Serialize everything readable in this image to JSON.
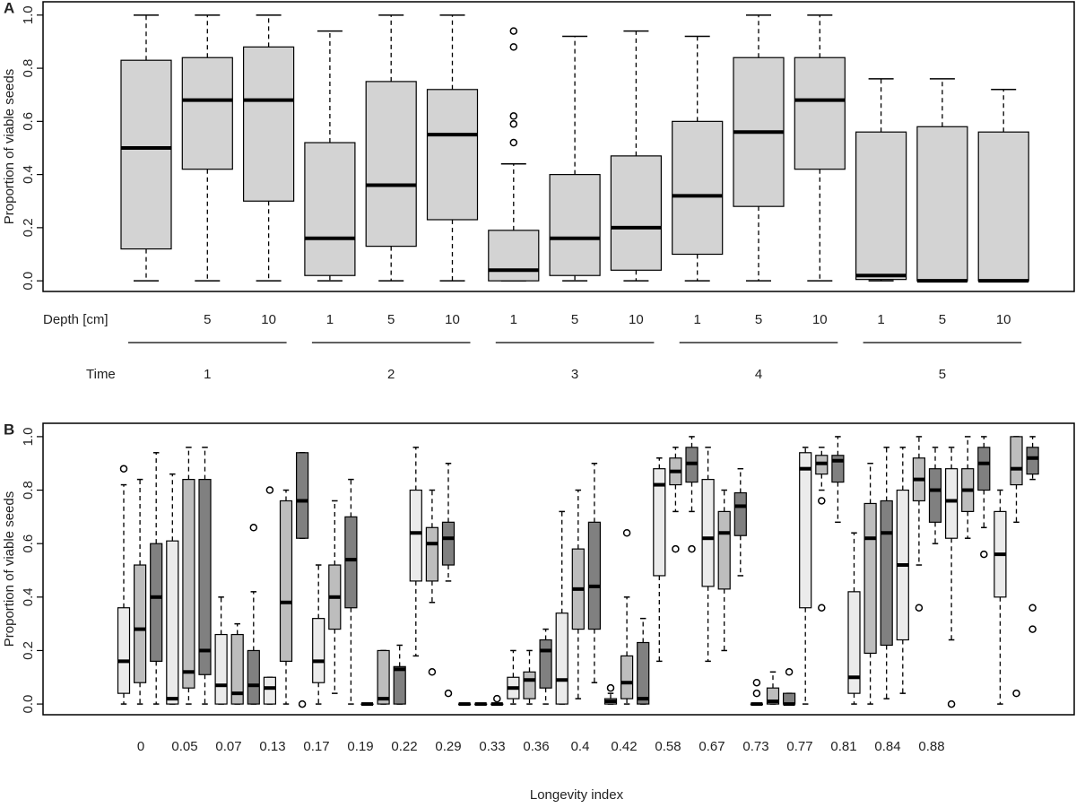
{
  "chart_data": [
    {
      "type": "box",
      "panel_label": "A",
      "ylabel": "Proportion of viable seeds",
      "ylim": [
        -0.04,
        1.05
      ],
      "yticks": [
        {
          "value": 0,
          "label": "0.0"
        },
        {
          "value": 0.2,
          "label": "0.2"
        },
        {
          "value": 0.4,
          "label": "0.4"
        },
        {
          "value": 0.6,
          "label": "0.6"
        },
        {
          "value": 0.8,
          "label": "0.8"
        },
        {
          "value": 1,
          "label": "1.0"
        }
      ],
      "depth_title": "Depth [cm]",
      "depths": [
        null,
        5,
        10,
        1,
        5,
        10,
        1,
        5,
        10,
        1,
        5,
        10,
        1,
        5,
        10
      ],
      "time_title": "Time",
      "times": [
        1,
        2,
        3,
        4,
        5
      ],
      "color": "#d3d3d3",
      "boxes": [
        {
          "low": 0,
          "q1": 0.12,
          "median": 0.5,
          "q3": 0.83,
          "high": 1,
          "outliers": []
        },
        {
          "low": 0,
          "q1": 0.42,
          "median": 0.68,
          "q3": 0.84,
          "high": 1,
          "outliers": []
        },
        {
          "low": 0,
          "q1": 0.3,
          "median": 0.68,
          "q3": 0.88,
          "high": 1,
          "outliers": []
        },
        {
          "low": 0,
          "q1": 0.02,
          "median": 0.16,
          "q3": 0.52,
          "high": 0.94,
          "outliers": []
        },
        {
          "low": 0,
          "q1": 0.13,
          "median": 0.36,
          "q3": 0.75,
          "high": 1,
          "outliers": []
        },
        {
          "low": 0,
          "q1": 0.23,
          "median": 0.55,
          "q3": 0.72,
          "high": 1,
          "outliers": []
        },
        {
          "low": 0,
          "q1": 0,
          "median": 0.04,
          "q3": 0.19,
          "high": 0.44,
          "outliers": [
            0.52,
            0.59,
            0.62,
            0.88,
            0.94
          ]
        },
        {
          "low": 0,
          "q1": 0.02,
          "median": 0.16,
          "q3": 0.4,
          "high": 0.92,
          "outliers": []
        },
        {
          "low": 0,
          "q1": 0.04,
          "median": 0.2,
          "q3": 0.47,
          "high": 0.94,
          "outliers": []
        },
        {
          "low": 0,
          "q1": 0.1,
          "median": 0.32,
          "q3": 0.6,
          "high": 0.92,
          "outliers": []
        },
        {
          "low": 0,
          "q1": 0.28,
          "median": 0.56,
          "q3": 0.84,
          "high": 1,
          "outliers": []
        },
        {
          "low": 0,
          "q1": 0.42,
          "median": 0.68,
          "q3": 0.84,
          "high": 1,
          "outliers": []
        },
        {
          "low": 0,
          "q1": 0.005,
          "median": 0.02,
          "q3": 0.56,
          "high": 0.76,
          "outliers": []
        },
        {
          "low": 0,
          "q1": 0,
          "median": 0,
          "q3": 0.58,
          "high": 0.76,
          "outliers": []
        },
        {
          "low": 0,
          "q1": 0,
          "median": 0,
          "q3": 0.56,
          "high": 0.72,
          "outliers": []
        }
      ]
    },
    {
      "type": "grouped-box",
      "panel_label": "B",
      "ylabel": "Proportion of viable seeds",
      "xlabel": "Longevity index",
      "ylim": [
        -0.04,
        1.05
      ],
      "yticks": [
        {
          "value": 0,
          "label": "0.0"
        },
        {
          "value": 0.2,
          "label": "0.2"
        },
        {
          "value": 0.4,
          "label": "0.4"
        },
        {
          "value": 0.6,
          "label": "0.6"
        },
        {
          "value": 0.8,
          "label": "0.8"
        },
        {
          "value": 1,
          "label": "1.0"
        }
      ],
      "categories": [
        0,
        0.05,
        0.07,
        0.13,
        0.17,
        0.19,
        0.22,
        0.29,
        0.33,
        0.36,
        0.4,
        0.42,
        0.58,
        0.67,
        0.73,
        0.77,
        0.81,
        0.84,
        0.88
      ],
      "series": [
        {
          "color": "#ebebeb",
          "boxes": [
            {
              "low": 0,
              "q1": 0.04,
              "median": 0.16,
              "q3": 0.36,
              "high": 0.82,
              "outliers": [
                0.88
              ]
            },
            {
              "low": 0,
              "q1": 0,
              "median": 0.02,
              "q3": 0.61,
              "high": 0.86,
              "outliers": []
            },
            {
              "low": 0,
              "q1": 0,
              "median": 0.07,
              "q3": 0.26,
              "high": 0.4,
              "outliers": []
            },
            {
              "low": 0,
              "q1": 0,
              "median": 0.06,
              "q3": 0.1,
              "high": 0.1,
              "outliers": [
                0.8
              ]
            },
            {
              "low": 0,
              "q1": 0.08,
              "median": 0.16,
              "q3": 0.32,
              "high": 0.52,
              "outliers": []
            },
            {
              "low": 0,
              "q1": 0,
              "median": 0,
              "q3": 0,
              "high": 0,
              "outliers": []
            },
            {
              "low": 0.18,
              "q1": 0.46,
              "median": 0.64,
              "q3": 0.8,
              "high": 0.96,
              "outliers": []
            },
            {
              "low": 0,
              "q1": 0,
              "median": 0,
              "q3": 0,
              "high": 0,
              "outliers": []
            },
            {
              "low": 0,
              "q1": 0.02,
              "median": 0.06,
              "q3": 0.1,
              "high": 0.2,
              "outliers": []
            },
            {
              "low": 0,
              "q1": 0,
              "median": 0.09,
              "q3": 0.34,
              "high": 0.72,
              "outliers": []
            },
            {
              "low": 0,
              "q1": 0,
              "median": 0.01,
              "q3": 0.02,
              "high": 0.04,
              "outliers": [
                0.06
              ]
            },
            {
              "low": 0.16,
              "q1": 0.48,
              "median": 0.82,
              "q3": 0.88,
              "high": 0.92,
              "outliers": []
            },
            {
              "low": 0.16,
              "q1": 0.44,
              "median": 0.62,
              "q3": 0.84,
              "high": 0.96,
              "outliers": []
            },
            {
              "low": 0,
              "q1": 0,
              "median": 0,
              "q3": 0,
              "high": 0,
              "outliers": [
                0.04,
                0.08
              ]
            },
            {
              "low": 0,
              "q1": 0.36,
              "median": 0.88,
              "q3": 0.94,
              "high": 0.96,
              "outliers": []
            },
            {
              "low": 0,
              "q1": 0.04,
              "median": 0.1,
              "q3": 0.42,
              "high": 0.64,
              "outliers": []
            },
            {
              "low": 0.04,
              "q1": 0.24,
              "median": 0.52,
              "q3": 0.8,
              "high": 0.96,
              "outliers": []
            },
            {
              "low": 0.24,
              "q1": 0.62,
              "median": 0.76,
              "q3": 0.88,
              "high": 0.96,
              "outliers": [
                0
              ]
            },
            {
              "low": 0,
              "q1": 0.4,
              "median": 0.56,
              "q3": 0.72,
              "high": 0.8,
              "outliers": []
            }
          ]
        },
        {
          "color": "#bdbdbd",
          "boxes": [
            {
              "low": 0,
              "q1": 0.08,
              "median": 0.28,
              "q3": 0.52,
              "high": 0.84,
              "outliers": []
            },
            {
              "low": 0,
              "q1": 0.06,
              "median": 0.12,
              "q3": 0.84,
              "high": 0.96,
              "outliers": []
            },
            {
              "low": 0,
              "q1": 0,
              "median": 0.04,
              "q3": 0.26,
              "high": 0.3,
              "outliers": []
            },
            {
              "low": 0,
              "q1": 0.16,
              "median": 0.38,
              "q3": 0.76,
              "high": 0.8,
              "outliers": []
            },
            {
              "low": 0.04,
              "q1": 0.28,
              "median": 0.4,
              "q3": 0.52,
              "high": 0.76,
              "outliers": []
            },
            {
              "low": 0,
              "q1": 0,
              "median": 0.02,
              "q3": 0.2,
              "high": 0.2,
              "outliers": []
            },
            {
              "low": 0.38,
              "q1": 0.46,
              "median": 0.6,
              "q3": 0.66,
              "high": 0.8,
              "outliers": [
                0.12
              ]
            },
            {
              "low": 0,
              "q1": 0,
              "median": 0,
              "q3": 0,
              "high": 0,
              "outliers": []
            },
            {
              "low": 0,
              "q1": 0.02,
              "median": 0.09,
              "q3": 0.12,
              "high": 0.2,
              "outliers": []
            },
            {
              "low": 0.02,
              "q1": 0.28,
              "median": 0.43,
              "q3": 0.58,
              "high": 0.8,
              "outliers": []
            },
            {
              "low": 0,
              "q1": 0.02,
              "median": 0.08,
              "q3": 0.18,
              "high": 0.4,
              "outliers": [
                0.64
              ]
            },
            {
              "low": 0.72,
              "q1": 0.82,
              "median": 0.87,
              "q3": 0.92,
              "high": 0.96,
              "outliers": [
                0.58
              ]
            },
            {
              "low": 0.2,
              "q1": 0.43,
              "median": 0.64,
              "q3": 0.72,
              "high": 0.8,
              "outliers": []
            },
            {
              "low": 0,
              "q1": 0,
              "median": 0.01,
              "q3": 0.06,
              "high": 0.12,
              "outliers": []
            },
            {
              "low": 0.8,
              "q1": 0.86,
              "median": 0.9,
              "q3": 0.93,
              "high": 0.96,
              "outliers": [
                0.76,
                0.36
              ]
            },
            {
              "low": 0,
              "q1": 0.19,
              "median": 0.62,
              "q3": 0.75,
              "high": 0.9,
              "outliers": []
            },
            {
              "low": 0.52,
              "q1": 0.76,
              "median": 0.84,
              "q3": 0.92,
              "high": 1,
              "outliers": [
                0.36
              ]
            },
            {
              "low": 0.62,
              "q1": 0.72,
              "median": 0.8,
              "q3": 0.88,
              "high": 1,
              "outliers": []
            },
            {
              "low": 0.68,
              "q1": 0.82,
              "median": 0.88,
              "q3": 1,
              "high": 1,
              "outliers": [
                0.04
              ]
            }
          ]
        },
        {
          "color": "#808080",
          "boxes": [
            {
              "low": 0,
              "q1": 0.16,
              "median": 0.4,
              "q3": 0.6,
              "high": 0.94,
              "outliers": []
            },
            {
              "low": 0,
              "q1": 0.11,
              "median": 0.2,
              "q3": 0.84,
              "high": 0.96,
              "outliers": []
            },
            {
              "low": 0,
              "q1": 0,
              "median": 0.07,
              "q3": 0.2,
              "high": 0.42,
              "outliers": [
                0.66
              ]
            },
            {
              "low": 0.62,
              "q1": 0.62,
              "median": 0.76,
              "q3": 0.94,
              "high": 0.94,
              "outliers": [
                0
              ]
            },
            {
              "low": 0,
              "q1": 0.36,
              "median": 0.54,
              "q3": 0.7,
              "high": 0.84,
              "outliers": []
            },
            {
              "low": 0,
              "q1": 0,
              "median": 0.13,
              "q3": 0.14,
              "high": 0.22,
              "outliers": []
            },
            {
              "low": 0.46,
              "q1": 0.52,
              "median": 0.62,
              "q3": 0.68,
              "high": 0.9,
              "outliers": [
                0.04
              ]
            },
            {
              "low": 0,
              "q1": 0,
              "median": 0,
              "q3": 0,
              "high": 0,
              "outliers": [
                0.02
              ]
            },
            {
              "low": 0,
              "q1": 0.06,
              "median": 0.2,
              "q3": 0.24,
              "high": 0.28,
              "outliers": []
            },
            {
              "low": 0.08,
              "q1": 0.28,
              "median": 0.44,
              "q3": 0.68,
              "high": 0.9,
              "outliers": []
            },
            {
              "low": 0,
              "q1": 0,
              "median": 0.02,
              "q3": 0.23,
              "high": 0.32,
              "outliers": []
            },
            {
              "low": 0.72,
              "q1": 0.83,
              "median": 0.9,
              "q3": 0.96,
              "high": 1,
              "outliers": [
                0.58
              ]
            },
            {
              "low": 0.48,
              "q1": 0.63,
              "median": 0.74,
              "q3": 0.79,
              "high": 0.88,
              "outliers": []
            },
            {
              "low": 0,
              "q1": 0,
              "median": 0,
              "q3": 0.04,
              "high": 0.04,
              "outliers": [
                0.12
              ]
            },
            {
              "low": 0.68,
              "q1": 0.83,
              "median": 0.91,
              "q3": 0.93,
              "high": 1,
              "outliers": []
            },
            {
              "low": 0.02,
              "q1": 0.22,
              "median": 0.64,
              "q3": 0.76,
              "high": 0.96,
              "outliers": []
            },
            {
              "low": 0.6,
              "q1": 0.68,
              "median": 0.8,
              "q3": 0.88,
              "high": 0.96,
              "outliers": []
            },
            {
              "low": 0.66,
              "q1": 0.8,
              "median": 0.9,
              "q3": 0.96,
              "high": 1,
              "outliers": [
                0.56
              ]
            },
            {
              "low": 0.84,
              "q1": 0.86,
              "median": 0.92,
              "q3": 0.96,
              "high": 1,
              "outliers": [
                0.36,
                0.28
              ]
            }
          ]
        }
      ]
    }
  ]
}
